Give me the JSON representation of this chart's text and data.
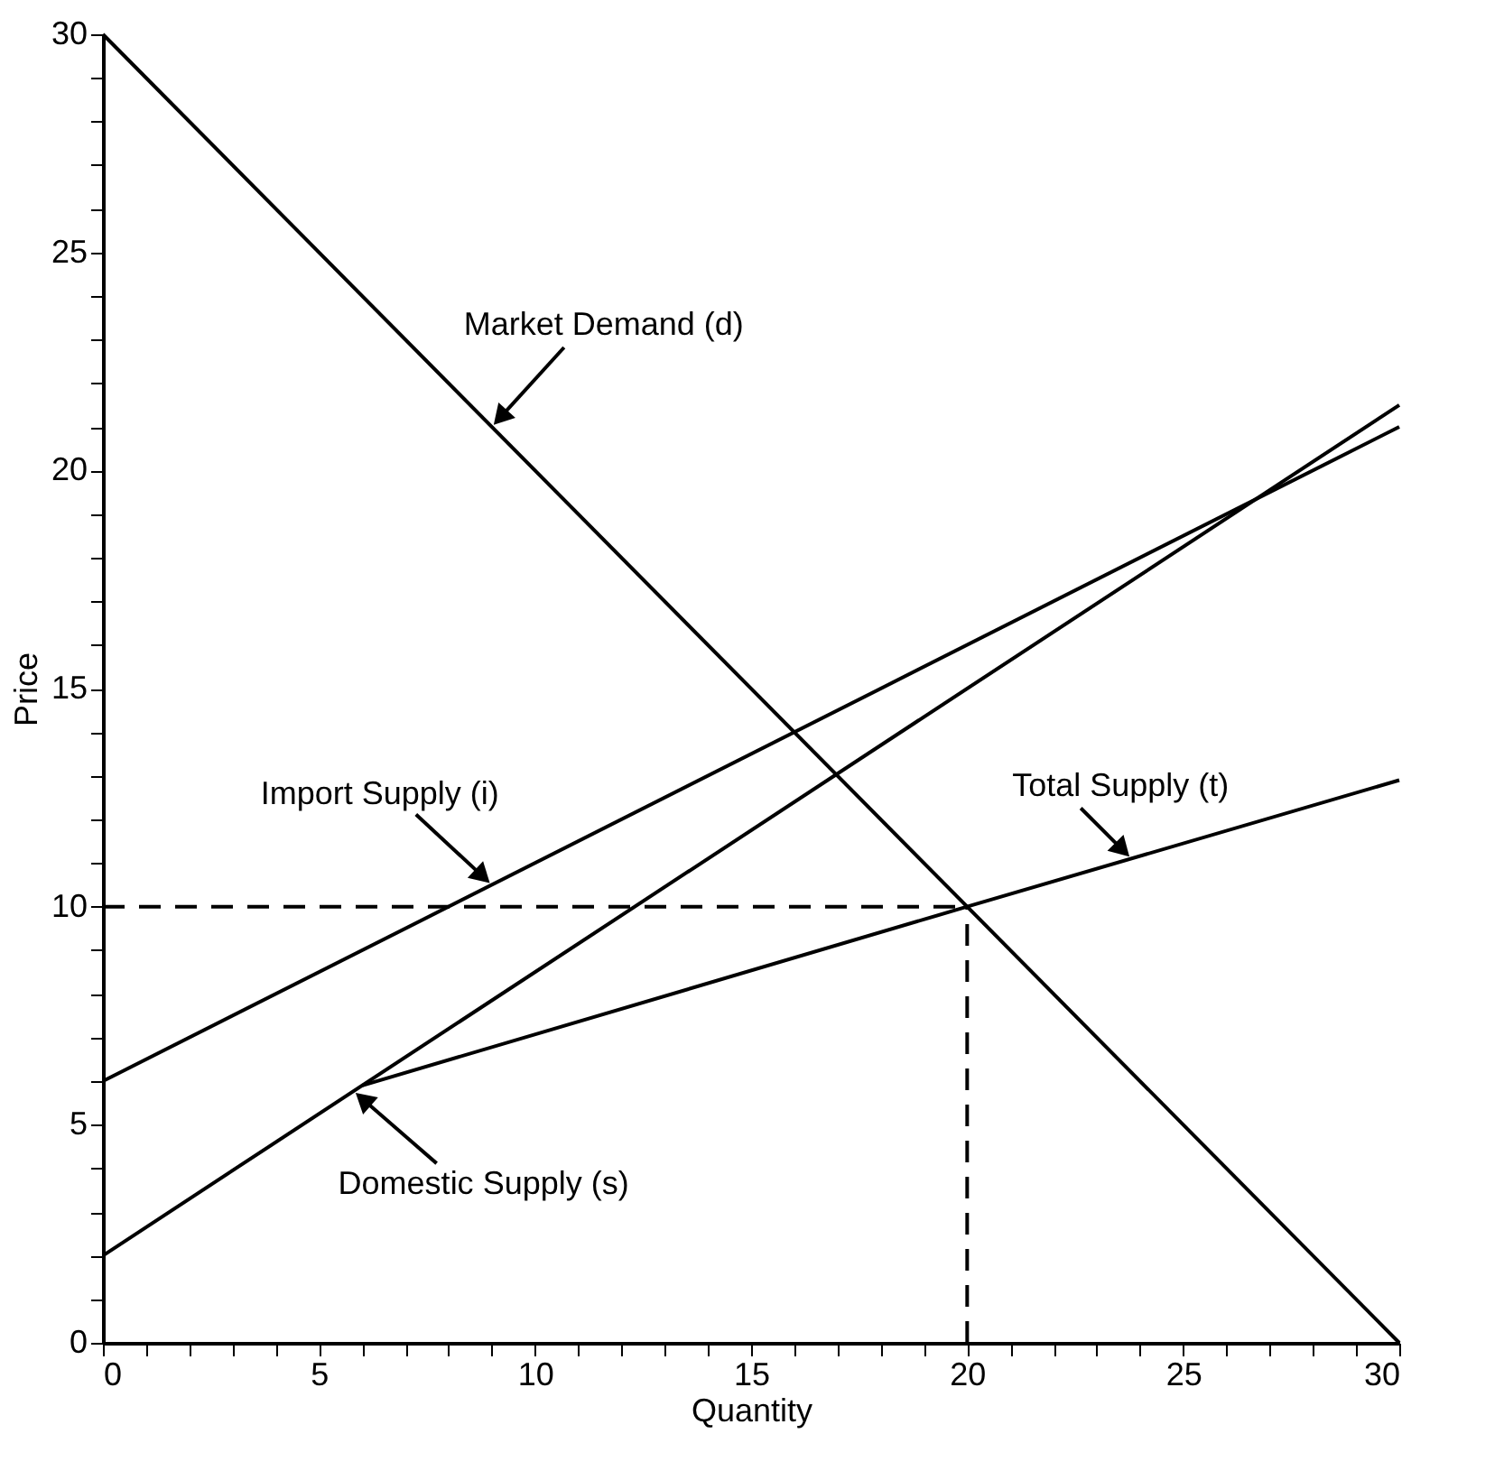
{
  "chart_data": {
    "type": "line",
    "xlabel": "Quantity",
    "ylabel": "Price",
    "xlim": [
      0,
      30
    ],
    "ylim": [
      0,
      30
    ],
    "xticks": [
      0,
      {
        "value": 1,
        "label": null
      },
      {
        "value": 2,
        "label": null
      },
      {
        "value": 3,
        "label": null
      },
      {
        "value": 4,
        "label": null
      },
      5,
      {
        "value": 6,
        "label": null
      },
      {
        "value": 7,
        "label": null
      },
      {
        "value": 8,
        "label": null
      },
      {
        "value": 9,
        "label": null
      },
      10,
      {
        "value": 11,
        "label": null
      },
      {
        "value": 12,
        "label": null
      },
      {
        "value": 13,
        "label": null
      },
      {
        "value": 14,
        "label": null
      },
      15,
      {
        "value": 16,
        "label": null
      },
      {
        "value": 17,
        "label": null
      },
      {
        "value": 18,
        "label": null
      },
      {
        "value": 19,
        "label": null
      },
      20,
      {
        "value": 21,
        "label": null
      },
      {
        "value": 22,
        "label": null
      },
      {
        "value": 23,
        "label": null
      },
      {
        "value": 24,
        "label": null
      },
      25,
      {
        "value": 26,
        "label": null
      },
      {
        "value": 27,
        "label": null
      },
      {
        "value": 28,
        "label": null
      },
      {
        "value": 29,
        "label": null
      },
      30
    ],
    "yticks": [
      0,
      {
        "value": 1,
        "label": null
      },
      {
        "value": 2,
        "label": null
      },
      {
        "value": 3,
        "label": null
      },
      {
        "value": 4,
        "label": null
      },
      5,
      {
        "value": 6,
        "label": null
      },
      {
        "value": 7,
        "label": null
      },
      {
        "value": 8,
        "label": null
      },
      {
        "value": 9,
        "label": null
      },
      10,
      {
        "value": 11,
        "label": null
      },
      {
        "value": 12,
        "label": null
      },
      {
        "value": 13,
        "label": null
      },
      {
        "value": 14,
        "label": null
      },
      15,
      {
        "value": 16,
        "label": null
      },
      {
        "value": 17,
        "label": null
      },
      {
        "value": 18,
        "label": null
      },
      {
        "value": 19,
        "label": null
      },
      20,
      {
        "value": 21,
        "label": null
      },
      {
        "value": 22,
        "label": null
      },
      {
        "value": 23,
        "label": null
      },
      {
        "value": 24,
        "label": null
      },
      25,
      {
        "value": 26,
        "label": null
      },
      {
        "value": 27,
        "label": null
      },
      {
        "value": 28,
        "label": null
      },
      {
        "value": 29,
        "label": null
      },
      30
    ],
    "grid": false,
    "legend": false,
    "marker": "none",
    "series": [
      {
        "color": "#000000",
        "x": [
          0,
          30
        ],
        "values": [
          30,
          0
        ]
      },
      {
        "color": "#000000",
        "x": [
          0,
          30
        ],
        "values": [
          6,
          21
        ]
      },
      {
        "color": "#000000",
        "x": [
          0,
          30
        ],
        "values": [
          2,
          21.5
        ]
      },
      {
        "color": "#000000",
        "x": [
          6,
          20,
          30
        ],
        "values": [
          5.9,
          10,
          12.9
        ]
      },
      {
        "color": "#000000",
        "x": [
          0,
          20
        ],
        "values": [
          10,
          10
        ],
        "line_style": "dashed"
      },
      {
        "color": "#000000",
        "x": [
          20,
          20
        ],
        "values": [
          0,
          10
        ],
        "line_style": "dashed"
      }
    ],
    "annotations": [
      {
        "text": "Market Demand (d)",
        "x": 9,
        "y": 21
      },
      {
        "text": "Import Supply (i)",
        "x": 9,
        "y": 10.5
      },
      {
        "text": "Total Supply (t)",
        "x": 23.8,
        "y": 11.1
      },
      {
        "text": "Domestic Supply (s)",
        "x": 5.8,
        "y": 5.77
      }
    ]
  }
}
